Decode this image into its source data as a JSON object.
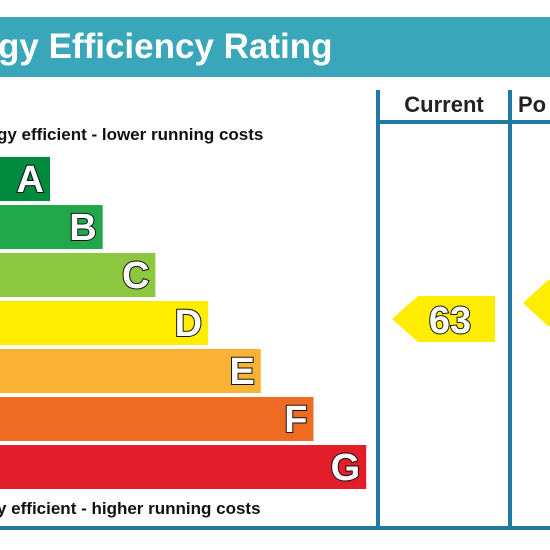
{
  "header": {
    "title": "gy Efficiency Rating"
  },
  "columns": {
    "current": "Current",
    "potential": "Po"
  },
  "scale": {
    "top_note": "gy efficient - lower running costs",
    "bottom_note": "y efficient - higher running costs",
    "bands": [
      "A",
      "B",
      "C",
      "D",
      "E",
      "F",
      "G"
    ]
  },
  "ratings": {
    "current": 63
  }
}
